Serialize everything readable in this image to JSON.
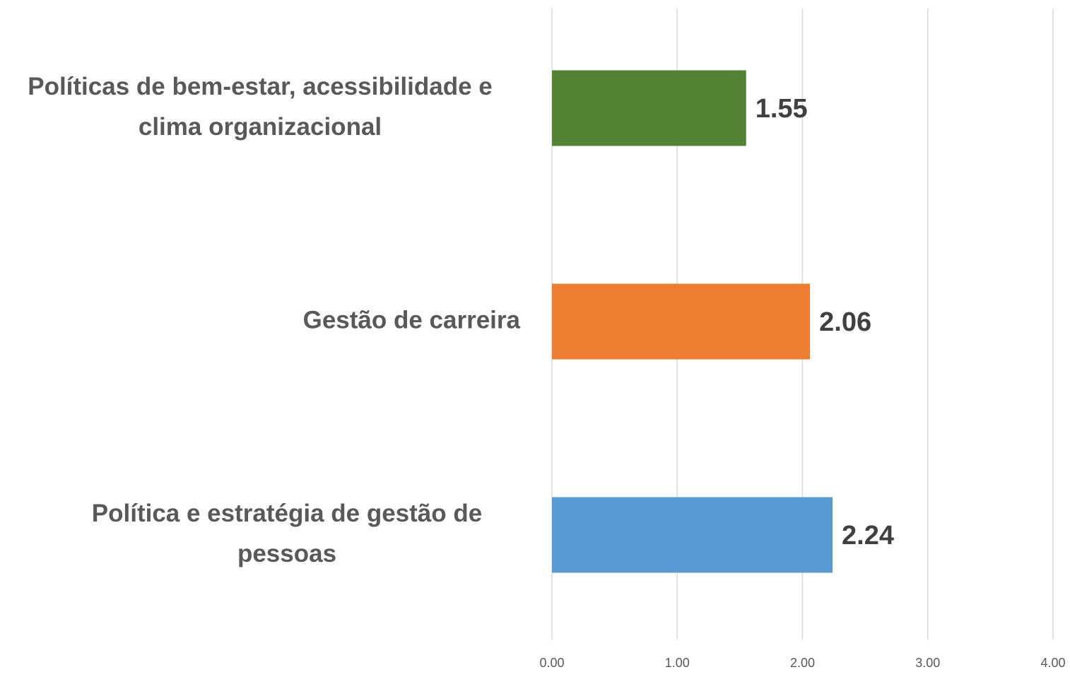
{
  "chart_data": {
    "type": "bar",
    "orientation": "horizontal",
    "categories": [
      "Políticas de bem-estar, acessibilidade e clima organizacional",
      "Gestão de carreira",
      "Política e estratégia de gestão de pessoas"
    ],
    "values": [
      1.55,
      2.06,
      2.24
    ],
    "colors": [
      "#548235",
      "#ed7d31",
      "#5b9bd5"
    ],
    "xlim": [
      0,
      4
    ],
    "xticks": [
      {
        "value": 0,
        "label": "0.00"
      },
      {
        "value": 1,
        "label": "1.00"
      },
      {
        "value": 2,
        "label": "2.00"
      },
      {
        "value": 3,
        "label": "3.00"
      },
      {
        "value": 4,
        "label": "4.00"
      }
    ],
    "grid": true
  }
}
